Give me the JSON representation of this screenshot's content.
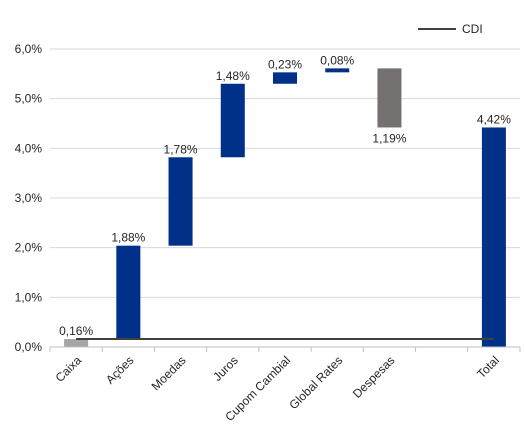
{
  "chart_data": {
    "type": "bar",
    "subtype": "waterfall",
    "categories": [
      "Caixa",
      "Ações",
      "Moedas",
      "Juros",
      "Cupom Cambial",
      "Global Rates",
      "Despesas",
      "",
      "Total"
    ],
    "series": [
      {
        "kind": "waterfall",
        "bars": [
          {
            "base": 0.0,
            "top": 0.16,
            "label": "0,16%",
            "color": "#a6a6a6"
          },
          {
            "base": 0.16,
            "top": 2.04,
            "label": "1,88%",
            "color": "#003087"
          },
          {
            "base": 2.04,
            "top": 3.82,
            "label": "1,78%",
            "color": "#003087"
          },
          {
            "base": 3.82,
            "top": 5.3,
            "label": "1,48%",
            "color": "#003087"
          },
          {
            "base": 5.3,
            "top": 5.53,
            "label": "0,23%",
            "color": "#003087"
          },
          {
            "base": 5.53,
            "top": 5.61,
            "label": "0,08%",
            "color": "#003087"
          },
          {
            "base": 4.42,
            "top": 5.61,
            "label": "1,19%",
            "color": "#767171"
          },
          null,
          {
            "base": 0.0,
            "top": 4.42,
            "label": "4,42%",
            "color": "#003087"
          }
        ]
      },
      {
        "name": "CDI",
        "kind": "line",
        "value": 0.16,
        "color": "#404040"
      }
    ],
    "yticks": [
      "0,0%",
      "1,0%",
      "2,0%",
      "3,0%",
      "4,0%",
      "5,0%",
      "6,0%"
    ],
    "ylim": [
      0,
      6
    ],
    "grid": true,
    "legend": "top-right"
  }
}
